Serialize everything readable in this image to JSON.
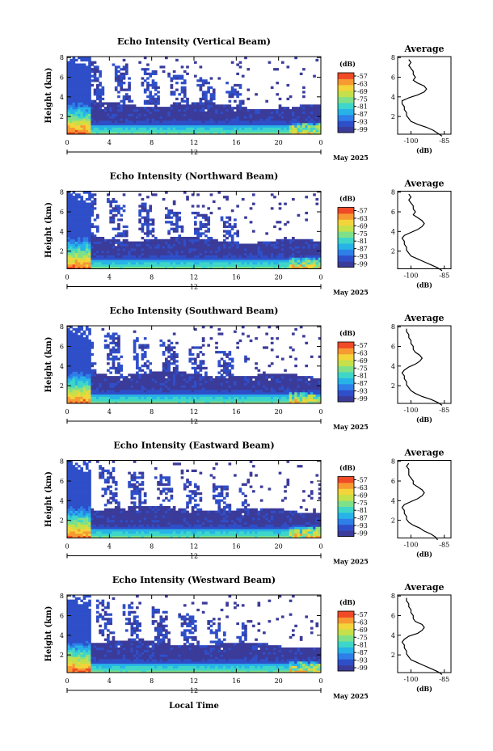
{
  "panels": [
    {
      "title": "Echo Intensity (Vertical Beam)",
      "beam": "vertical",
      "profile": [
        [
          0.0,
          -86
        ],
        [
          0.3,
          -88
        ],
        [
          0.6,
          -90
        ],
        [
          0.9,
          -93
        ],
        [
          1.2,
          -97
        ],
        [
          1.5,
          -100
        ],
        [
          1.8,
          -101
        ],
        [
          2.1,
          -102
        ],
        [
          2.4,
          -102
        ],
        [
          2.7,
          -103
        ],
        [
          3.0,
          -103
        ],
        [
          3.3,
          -104
        ],
        [
          3.6,
          -104
        ],
        [
          3.9,
          -101
        ],
        [
          4.2,
          -97
        ],
        [
          4.5,
          -94
        ],
        [
          4.8,
          -93
        ],
        [
          5.1,
          -94
        ],
        [
          5.4,
          -97
        ],
        [
          5.7,
          -99
        ],
        [
          6.0,
          -98
        ],
        [
          6.3,
          -99
        ],
        [
          6.6,
          -99
        ],
        [
          6.9,
          -100
        ],
        [
          7.2,
          -101
        ],
        [
          7.5,
          -100
        ],
        [
          7.8,
          -101
        ]
      ]
    },
    {
      "title": "Echo Intensity (Northward Beam)",
      "beam": "northward",
      "profile": [
        [
          0.0,
          -86
        ],
        [
          0.3,
          -88
        ],
        [
          0.6,
          -91
        ],
        [
          0.9,
          -94
        ],
        [
          1.2,
          -97
        ],
        [
          1.5,
          -100
        ],
        [
          1.8,
          -101
        ],
        [
          2.1,
          -102
        ],
        [
          2.4,
          -102
        ],
        [
          2.7,
          -103
        ],
        [
          3.0,
          -103
        ],
        [
          3.3,
          -104
        ],
        [
          3.6,
          -103
        ],
        [
          3.9,
          -100
        ],
        [
          4.2,
          -97
        ],
        [
          4.5,
          -95
        ],
        [
          4.8,
          -94
        ],
        [
          5.1,
          -95
        ],
        [
          5.4,
          -97
        ],
        [
          5.7,
          -99
        ],
        [
          6.0,
          -98
        ],
        [
          6.3,
          -99
        ],
        [
          6.6,
          -99
        ],
        [
          6.9,
          -100
        ],
        [
          7.2,
          -101
        ],
        [
          7.5,
          -100
        ],
        [
          7.8,
          -101
        ]
      ]
    },
    {
      "title": "Echo Intensity (Southward Beam)",
      "beam": "southward",
      "profile": [
        [
          0.0,
          -86
        ],
        [
          0.3,
          -88
        ],
        [
          0.6,
          -91
        ],
        [
          0.9,
          -95
        ],
        [
          1.2,
          -98
        ],
        [
          1.5,
          -100
        ],
        [
          1.8,
          -101
        ],
        [
          2.1,
          -102
        ],
        [
          2.4,
          -102
        ],
        [
          2.7,
          -103
        ],
        [
          3.0,
          -103
        ],
        [
          3.3,
          -104
        ],
        [
          3.6,
          -103
        ],
        [
          3.9,
          -101
        ],
        [
          4.2,
          -98
        ],
        [
          4.5,
          -96
        ],
        [
          4.8,
          -95
        ],
        [
          5.1,
          -96
        ],
        [
          5.4,
          -98
        ],
        [
          5.7,
          -99
        ],
        [
          6.0,
          -99
        ],
        [
          6.3,
          -100
        ],
        [
          6.6,
          -100
        ],
        [
          6.9,
          -101
        ],
        [
          7.2,
          -101
        ],
        [
          7.5,
          -102
        ],
        [
          7.8,
          -102
        ]
      ]
    },
    {
      "title": "Echo Intensity (Eastward Beam)",
      "beam": "eastward",
      "profile": [
        [
          0.0,
          -88
        ],
        [
          0.3,
          -89
        ],
        [
          0.6,
          -91
        ],
        [
          0.9,
          -94
        ],
        [
          1.2,
          -96
        ],
        [
          1.5,
          -99
        ],
        [
          1.8,
          -101
        ],
        [
          2.1,
          -102
        ],
        [
          2.4,
          -102
        ],
        [
          2.7,
          -103
        ],
        [
          3.0,
          -103
        ],
        [
          3.3,
          -104
        ],
        [
          3.6,
          -103
        ],
        [
          3.9,
          -100
        ],
        [
          4.2,
          -97
        ],
        [
          4.5,
          -95
        ],
        [
          4.8,
          -94
        ],
        [
          5.1,
          -95
        ],
        [
          5.4,
          -97
        ],
        [
          5.7,
          -99
        ],
        [
          6.0,
          -99
        ],
        [
          6.3,
          -100
        ],
        [
          6.6,
          -101
        ],
        [
          6.9,
          -101
        ],
        [
          7.2,
          -101
        ],
        [
          7.5,
          -102
        ],
        [
          7.8,
          -101
        ]
      ]
    },
    {
      "title": "Echo Intensity (Westward Beam)",
      "beam": "westward",
      "profile": [
        [
          0.0,
          -86
        ],
        [
          0.3,
          -88
        ],
        [
          0.6,
          -91
        ],
        [
          0.9,
          -94
        ],
        [
          1.2,
          -97
        ],
        [
          1.5,
          -100
        ],
        [
          1.8,
          -101
        ],
        [
          2.1,
          -102
        ],
        [
          2.4,
          -102
        ],
        [
          2.7,
          -103
        ],
        [
          3.0,
          -103
        ],
        [
          3.3,
          -104
        ],
        [
          3.6,
          -103
        ],
        [
          3.9,
          -101
        ],
        [
          4.2,
          -97
        ],
        [
          4.5,
          -95
        ],
        [
          4.8,
          -94
        ],
        [
          5.1,
          -95
        ],
        [
          5.4,
          -98
        ],
        [
          5.7,
          -99
        ],
        [
          6.0,
          -99
        ],
        [
          6.3,
          -100
        ],
        [
          6.6,
          -100
        ],
        [
          6.9,
          -101
        ],
        [
          7.2,
          -101
        ],
        [
          7.5,
          -102
        ],
        [
          7.8,
          -102
        ]
      ]
    }
  ],
  "profile_title": "Average",
  "profile_xlabel": "(dB)",
  "profile_xticks": [
    "-100",
    "-85"
  ],
  "profile_xlim": [
    -106,
    -82
  ],
  "height_label": "Height (km)",
  "height_ticks": [
    "2",
    "4",
    "6",
    "8"
  ],
  "height_lim": [
    0.2,
    8.1
  ],
  "time_ticks": [
    "0",
    "4",
    "8",
    "12",
    "16",
    "20",
    "0"
  ],
  "time_lim": [
    0,
    24
  ],
  "day_label": "12",
  "date_label": "May 2025",
  "xlabel": "Local Time",
  "colorbar_unit": "(dB)",
  "colorbar_ticks": [
    "-57",
    "-63",
    "-69",
    "-75",
    "-81",
    "-87",
    "-93",
    "-99"
  ],
  "colorscale": [
    "#3b3b9a",
    "#2f4fc9",
    "#2e7fe8",
    "#27b3e8",
    "#3ed6c9",
    "#7fe08a",
    "#c4e04a",
    "#f3d43a",
    "#f79a32",
    "#f04a27"
  ],
  "chart_data": {
    "type": "heatmap",
    "description_fields": "Five time-height echo intensity panels with per-beam average profiles",
    "titles": [
      "Echo Intensity (Vertical Beam)",
      "Echo Intensity (Northward Beam)",
      "Echo Intensity (Southward Beam)",
      "Echo Intensity (Eastward Beam)",
      "Echo Intensity (Westward Beam)"
    ],
    "xlabel": "Local Time",
    "ylabel": "Height (km)",
    "xlim": [
      0,
      24
    ],
    "ylim": [
      0.2,
      8.1
    ],
    "colorbar_range_dB": [
      -99,
      -57
    ],
    "profile_xlim": [
      -106,
      -82
    ]
  }
}
